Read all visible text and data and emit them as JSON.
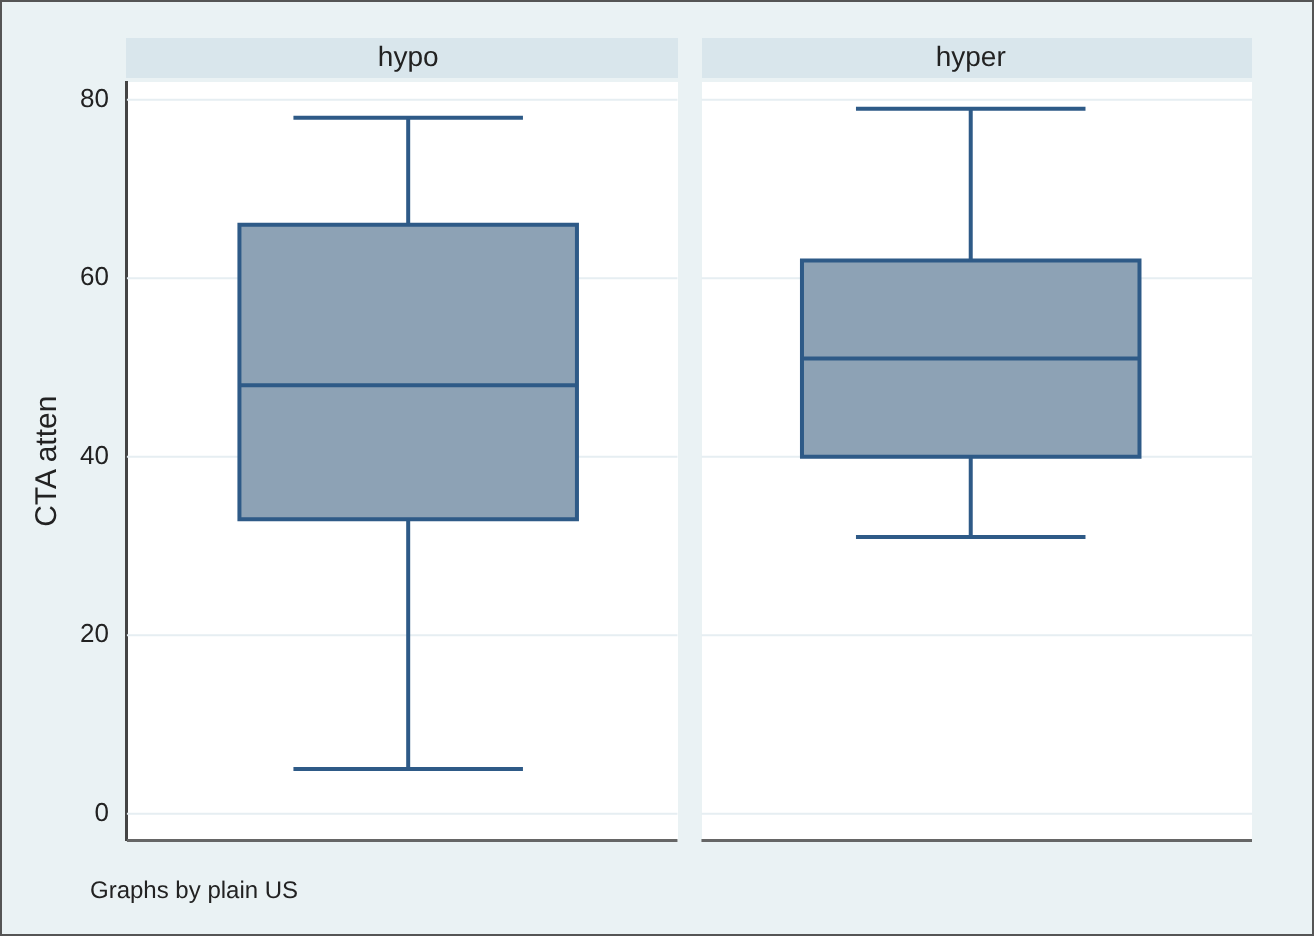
{
  "chart_data": {
    "type": "box",
    "ylabel": "CTA atten",
    "categories": [
      "hypo",
      "hyper"
    ],
    "boxes": [
      {
        "low": 5,
        "q1": 33,
        "median": 48,
        "q3": 66,
        "high": 78
      },
      {
        "low": 31,
        "q1": 40,
        "median": 51,
        "q3": 62,
        "high": 79
      }
    ],
    "color": "#8da2b5",
    "ylim": [
      -3,
      82
    ],
    "yticks": [
      0,
      20,
      40,
      60,
      80
    ],
    "grid": "y",
    "legend": false,
    "annotations": [
      "Graphs by plain US"
    ]
  }
}
